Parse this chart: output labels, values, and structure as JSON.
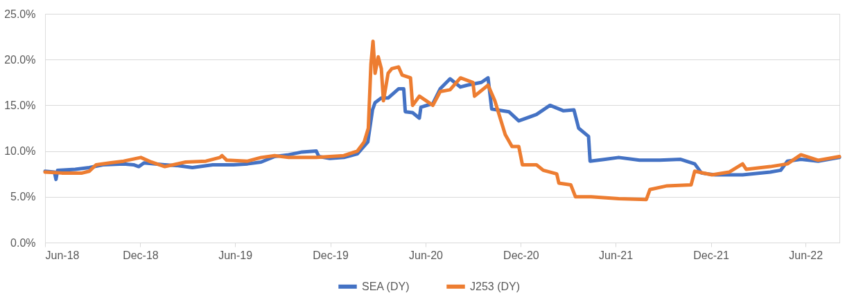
{
  "chart_data": {
    "type": "line",
    "xlim": [
      "2018-06-01",
      "2022-08-05"
    ],
    "xticks": [
      {
        "value": "2018-06-01",
        "label": "Jun-18"
      },
      {
        "value": "2018-12-01",
        "label": "Dec-18"
      },
      {
        "value": "2019-06-01",
        "label": "Jun-19"
      },
      {
        "value": "2019-12-01",
        "label": "Dec-19"
      },
      {
        "value": "2020-06-01",
        "label": "Jun-20"
      },
      {
        "value": "2020-12-01",
        "label": "Dec-20"
      },
      {
        "value": "2021-06-01",
        "label": "Jun-21"
      },
      {
        "value": "2021-12-01",
        "label": "Dec-21"
      },
      {
        "value": "2022-06-01",
        "label": "Jun-22"
      }
    ],
    "ylim": [
      0,
      25
    ],
    "yticks": [
      {
        "value": 0,
        "label": "0.0%"
      },
      {
        "value": 5,
        "label": "5.0%"
      },
      {
        "value": 10,
        "label": "10.0%"
      },
      {
        "value": 15,
        "label": "15.0%"
      },
      {
        "value": 20,
        "label": "20.0%"
      },
      {
        "value": 25,
        "label": "25.0%"
      }
    ],
    "grid": "y",
    "legend": "bottom",
    "marker": "none",
    "line_style": "solid",
    "series": [
      {
        "name": "SEA (DY)",
        "color": "#4472c4",
        "x": [
          "2018-06-01",
          "2018-06-19",
          "2018-06-22",
          "2018-06-25",
          "2018-07-29",
          "2018-08-25",
          "2018-09-20",
          "2018-10-30",
          "2018-11-18",
          "2018-11-28",
          "2018-12-08",
          "2019-01-17",
          "2019-02-12",
          "2019-03-11",
          "2019-04-19",
          "2019-05-29",
          "2019-06-25",
          "2019-07-21",
          "2019-08-16",
          "2019-09-12",
          "2019-10-08",
          "2019-11-04",
          "2019-11-09",
          "2019-11-30",
          "2019-12-27",
          "2020-01-22",
          "2020-02-11",
          "2020-02-20",
          "2020-02-25",
          "2020-03-08",
          "2020-03-21",
          "2020-04-10",
          "2020-04-20",
          "2020-04-23",
          "2020-05-07",
          "2020-05-20",
          "2020-05-23",
          "2020-06-15",
          "2020-06-29",
          "2020-07-18",
          "2020-08-07",
          "2020-08-20",
          "2020-09-16",
          "2020-09-29",
          "2020-10-06",
          "2020-11-08",
          "2020-11-27",
          "2020-12-31",
          "2021-01-26",
          "2021-02-21",
          "2021-03-13",
          "2021-03-22",
          "2021-04-10",
          "2021-04-13",
          "2021-05-12",
          "2021-06-07",
          "2021-07-17",
          "2021-08-25",
          "2021-10-04",
          "2021-10-31",
          "2021-11-13",
          "2021-12-09",
          "2022-01-31",
          "2022-03-25",
          "2022-04-14",
          "2022-04-27",
          "2022-05-23",
          "2022-06-25",
          "2022-08-05"
        ],
        "values": [
          7.8,
          7.7,
          6.9,
          7.9,
          8.0,
          8.2,
          8.5,
          8.6,
          8.5,
          8.3,
          8.7,
          8.5,
          8.4,
          8.2,
          8.5,
          8.5,
          8.6,
          8.8,
          9.4,
          9.6,
          9.9,
          10.0,
          9.4,
          9.2,
          9.3,
          9.7,
          11.0,
          14.5,
          15.3,
          15.8,
          15.8,
          16.8,
          16.8,
          14.3,
          14.2,
          13.6,
          14.8,
          15.2,
          16.8,
          17.9,
          17.0,
          17.2,
          17.5,
          18.0,
          14.6,
          14.3,
          13.3,
          14.0,
          15.0,
          14.4,
          14.5,
          12.5,
          11.6,
          8.9,
          9.1,
          9.3,
          9.0,
          9.0,
          9.1,
          8.6,
          7.6,
          7.4,
          7.4,
          7.7,
          7.9,
          8.9,
          9.1,
          8.9,
          9.3
        ]
      },
      {
        "name": "J253 (DY)",
        "color": "#ed7d31",
        "x": [
          "2018-06-01",
          "2018-07-03",
          "2018-08-11",
          "2018-08-25",
          "2018-09-07",
          "2018-10-03",
          "2018-10-30",
          "2018-12-02",
          "2018-12-22",
          "2019-01-17",
          "2019-02-26",
          "2019-04-06",
          "2019-05-03",
          "2019-05-07",
          "2019-05-16",
          "2019-06-25",
          "2019-07-21",
          "2019-08-16",
          "2019-09-12",
          "2019-11-04",
          "2019-12-27",
          "2020-01-22",
          "2020-02-04",
          "2020-02-12",
          "2020-02-17",
          "2020-02-21",
          "2020-02-25",
          "2020-03-02",
          "2020-03-08",
          "2020-03-12",
          "2020-03-21",
          "2020-03-28",
          "2020-04-10",
          "2020-04-17",
          "2020-05-03",
          "2020-05-07",
          "2020-05-20",
          "2020-06-15",
          "2020-06-29",
          "2020-07-18",
          "2020-08-07",
          "2020-08-31",
          "2020-09-03",
          "2020-09-29",
          "2020-10-12",
          "2020-11-01",
          "2020-11-14",
          "2020-11-27",
          "2020-12-04",
          "2020-12-17",
          "2020-12-31",
          "2021-01-13",
          "2021-02-08",
          "2021-02-12",
          "2021-03-07",
          "2021-03-16",
          "2021-04-15",
          "2021-06-07",
          "2021-07-30",
          "2021-08-06",
          "2021-09-08",
          "2021-10-24",
          "2021-10-31",
          "2021-12-03",
          "2022-01-05",
          "2022-01-31",
          "2022-02-07",
          "2022-03-25",
          "2022-04-27",
          "2022-05-23",
          "2022-06-25",
          "2022-08-05"
        ],
        "values": [
          7.7,
          7.6,
          7.6,
          7.8,
          8.5,
          8.7,
          8.9,
          9.3,
          8.8,
          8.3,
          8.8,
          8.9,
          9.3,
          9.5,
          9.0,
          8.9,
          9.3,
          9.5,
          9.3,
          9.3,
          9.5,
          10.0,
          11.0,
          12.5,
          19.5,
          22.0,
          18.5,
          20.3,
          19.0,
          15.5,
          18.5,
          19.0,
          19.2,
          18.3,
          18.0,
          15.0,
          16.0,
          15.0,
          16.5,
          16.7,
          18.0,
          17.5,
          16.0,
          17.2,
          15.5,
          11.8,
          10.5,
          10.5,
          8.5,
          8.5,
          8.5,
          7.9,
          7.5,
          6.5,
          6.3,
          5.0,
          5.0,
          4.8,
          4.7,
          5.8,
          6.2,
          6.3,
          7.8,
          7.4,
          7.7,
          8.6,
          8.0,
          8.3,
          8.6,
          9.6,
          9.0,
          9.4
        ]
      }
    ]
  }
}
